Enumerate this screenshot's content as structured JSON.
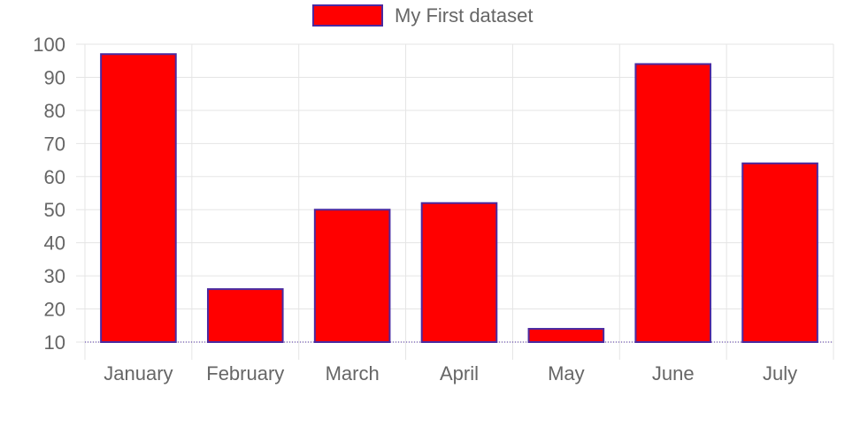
{
  "chart_data": {
    "type": "bar",
    "categories": [
      "January",
      "February",
      "March",
      "April",
      "May",
      "June",
      "July"
    ],
    "series": [
      {
        "name": "My First dataset",
        "values": [
          97,
          26,
          50,
          52,
          14,
          94,
          64
        ]
      }
    ],
    "ylim": [
      10,
      100
    ],
    "yticks": [
      10,
      20,
      30,
      40,
      50,
      60,
      70,
      80,
      90,
      100
    ],
    "grid": true,
    "legend_position": "top-center",
    "colors": {
      "bar_fill": "#ff0000",
      "bar_border": "#4b2aa0",
      "grid": "#e5e5e5",
      "text": "#666666"
    }
  }
}
